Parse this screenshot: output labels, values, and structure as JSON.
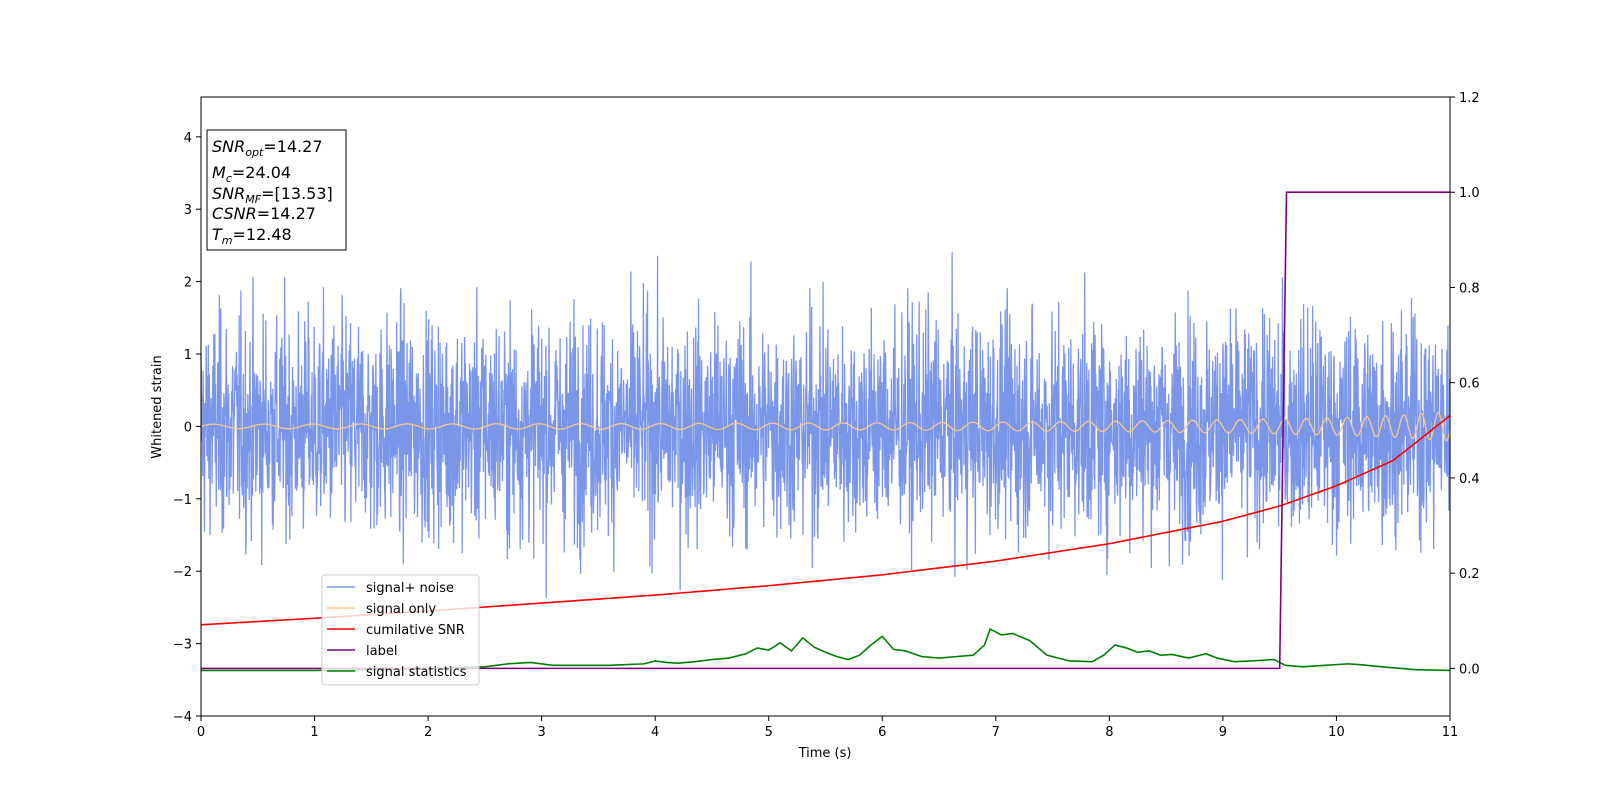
{
  "chart_data": {
    "type": "line",
    "xlabel": "Time (s)",
    "ylabel": "Whitened strain",
    "xlim": [
      0,
      11
    ],
    "ylim": [
      -4,
      4.55
    ],
    "y2lim": [
      -0.1,
      1.2
    ],
    "xticks": [
      0,
      1,
      2,
      3,
      4,
      5,
      6,
      7,
      8,
      9,
      10,
      11
    ],
    "yticks": [
      -4,
      -3,
      -2,
      -1,
      0,
      1,
      2,
      3,
      4
    ],
    "y2ticks": [
      0.0,
      0.2,
      0.4,
      0.6,
      0.8,
      1.0,
      1.2
    ],
    "xtick_labels": [
      "0",
      "1",
      "2",
      "3",
      "4",
      "5",
      "6",
      "7",
      "8",
      "9",
      "10",
      "11"
    ],
    "ytick_labels": [
      "−4",
      "−3",
      "−2",
      "−1",
      "0",
      "1",
      "2",
      "3",
      "4"
    ],
    "y2tick_labels": [
      "0.0",
      "0.2",
      "0.4",
      "0.6",
      "0.8",
      "1.0",
      "1.2"
    ],
    "grid": false,
    "legend_placement": "lower-left",
    "series": [
      {
        "name": "signal+ noise",
        "axis": "left",
        "color": "#7b96e8",
        "kind": "noise",
        "amplitude_std": 0.75,
        "min": -2.6,
        "max": 2.6
      },
      {
        "name": "signal only",
        "axis": "left",
        "color": "#f5c98a",
        "kind": "chirp",
        "x": [
          0,
          2,
          4,
          6,
          8,
          9,
          10,
          10.5,
          11
        ],
        "amplitude": [
          0.03,
          0.035,
          0.04,
          0.05,
          0.07,
          0.09,
          0.12,
          0.15,
          0.2
        ],
        "cycles_per_second": [
          2.2,
          2.5,
          2.9,
          3.4,
          4.2,
          4.8,
          5.6,
          6.2,
          7.0
        ]
      },
      {
        "name": "cumilative SNR",
        "axis": "left",
        "color": "#ff0000",
        "x": [
          0,
          1,
          2,
          3,
          4,
          5,
          6,
          7,
          8,
          9,
          9.5,
          10,
          10.5,
          11
        ],
        "y": [
          -2.74,
          -2.65,
          -2.55,
          -2.44,
          -2.33,
          -2.2,
          -2.05,
          -1.86,
          -1.62,
          -1.31,
          -1.1,
          -0.82,
          -0.47,
          0.15
        ]
      },
      {
        "name": "label",
        "axis": "right",
        "color": "#800080",
        "x": [
          0,
          9.5,
          9.56,
          11
        ],
        "y": [
          0,
          0,
          1,
          1
        ]
      },
      {
        "name": "signal statistics",
        "axis": "left",
        "color": "#008000",
        "x": [
          0,
          0.5,
          1,
          1.5,
          2,
          2.5,
          2.7,
          2.9,
          3.1,
          3.3,
          3.6,
          3.9,
          4.0,
          4.1,
          4.2,
          4.35,
          4.5,
          4.65,
          4.8,
          4.9,
          5.0,
          5.1,
          5.2,
          5.3,
          5.4,
          5.5,
          5.6,
          5.7,
          5.8,
          5.9,
          6.0,
          6.1,
          6.2,
          6.35,
          6.5,
          6.65,
          6.8,
          6.9,
          6.95,
          7.05,
          7.15,
          7.3,
          7.45,
          7.65,
          7.85,
          7.95,
          8.05,
          8.15,
          8.25,
          8.35,
          8.45,
          8.55,
          8.7,
          8.85,
          8.95,
          9.1,
          9.25,
          9.35,
          9.45,
          9.55,
          9.7,
          9.9,
          10.1,
          10.2,
          10.4,
          10.7,
          11
        ],
        "y": [
          -3.37,
          -3.37,
          -3.37,
          -3.36,
          -3.34,
          -3.32,
          -3.28,
          -3.26,
          -3.3,
          -3.3,
          -3.3,
          -3.28,
          -3.24,
          -3.26,
          -3.27,
          -3.25,
          -3.22,
          -3.2,
          -3.14,
          -3.06,
          -3.09,
          -2.99,
          -3.1,
          -2.92,
          -3.05,
          -3.12,
          -3.18,
          -3.22,
          -3.16,
          -3.02,
          -2.9,
          -3.08,
          -3.1,
          -3.18,
          -3.2,
          -3.18,
          -3.16,
          -3.02,
          -2.8,
          -2.88,
          -2.86,
          -2.96,
          -3.16,
          -3.24,
          -3.25,
          -3.16,
          -3.02,
          -3.06,
          -3.12,
          -3.1,
          -3.16,
          -3.15,
          -3.2,
          -3.14,
          -3.2,
          -3.25,
          -3.24,
          -3.23,
          -3.22,
          -3.3,
          -3.32,
          -3.3,
          -3.28,
          -3.29,
          -3.32,
          -3.36,
          -3.37
        ]
      }
    ],
    "annotation": {
      "lines": [
        {
          "main": "SNR",
          "sub": "opt",
          "rest": "=14.27"
        },
        {
          "main": "M",
          "sub": "c",
          "rest": "=24.04"
        },
        {
          "main": "SNR",
          "sub": "MF",
          "rest": "=[13.53]"
        },
        {
          "main": "CSNR",
          "sub": "",
          "rest": "=14.27"
        },
        {
          "main": "T",
          "sub": "m",
          "rest": "=12.48"
        }
      ]
    }
  }
}
